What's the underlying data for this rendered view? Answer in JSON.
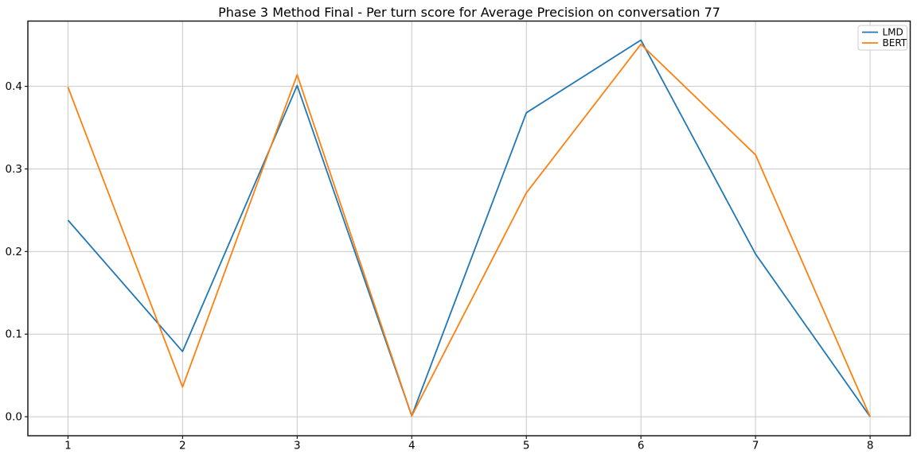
{
  "chart_data": {
    "type": "line",
    "title": "Phase 3 Method Final - Per turn score for Average Precision on conversation 77",
    "xlabel": "",
    "ylabel": "",
    "x": [
      1,
      2,
      3,
      4,
      5,
      6,
      7,
      8
    ],
    "series": [
      {
        "name": "LMD",
        "color": "#1f77b4",
        "values": [
          0.238,
          0.079,
          0.401,
          0.001,
          0.368,
          0.456,
          0.197,
          0.0
        ]
      },
      {
        "name": "BERT",
        "color": "#ff7f0e",
        "values": [
          0.399,
          0.036,
          0.414,
          0.001,
          0.271,
          0.451,
          0.317,
          0.0
        ]
      }
    ],
    "xlim": [
      0.65,
      8.35
    ],
    "ylim": [
      -0.023,
      0.479
    ],
    "xticks": {
      "values": [
        1,
        2,
        3,
        4,
        5,
        6,
        7,
        8
      ],
      "labels": [
        "1",
        "2",
        "3",
        "4",
        "5",
        "6",
        "7",
        "8"
      ]
    },
    "yticks": {
      "values": [
        0.0,
        0.1,
        0.2,
        0.3,
        0.4
      ],
      "labels": [
        "0.0",
        "0.1",
        "0.2",
        "0.3",
        "0.4"
      ]
    },
    "grid": true,
    "legend": {
      "position": "upper right",
      "entries": [
        "LMD",
        "BERT"
      ]
    },
    "colors": {
      "grid": "#c8c8c8",
      "spine": "#1a1a1a",
      "tick": "#1a1a1a",
      "background": "#ffffff",
      "legend_border": "#cccccc",
      "legend_background": "#ffffff"
    }
  }
}
